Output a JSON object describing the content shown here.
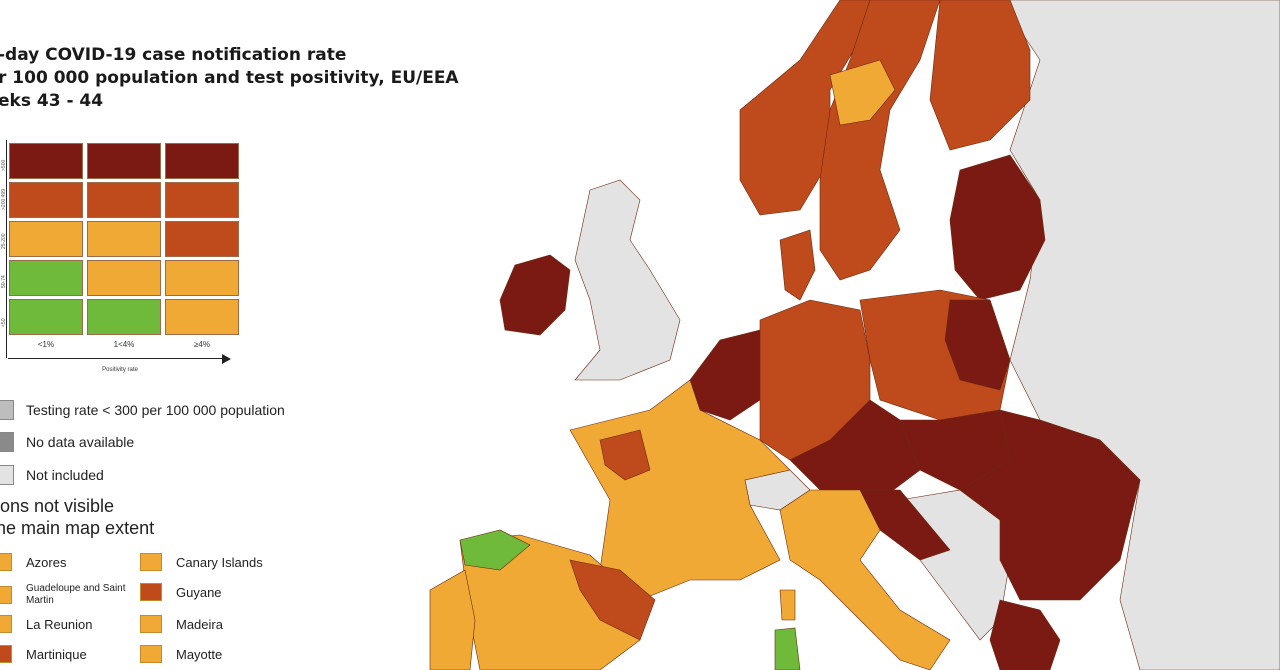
{
  "title": {
    "line1": "-day COVID-19 case notification rate",
    "line2": "r 100 000 population and test positivity, EU/EEA",
    "line3": "eks 43 - 44"
  },
  "colors": {
    "dark_red": "#7b1a12",
    "red": "#bf4a1c",
    "orange": "#f0a934",
    "green": "#6fba3a",
    "grey_light": "#e3e3e3",
    "grey_mid": "#bdbdbd",
    "grey_dark": "#8a8a8a",
    "sea": "#ffffff"
  },
  "matrix": {
    "rate_labels": [
      ">500",
      ">200 499",
      "25-200",
      "50-74",
      "<50"
    ],
    "positivity_labels": [
      "<1%",
      "1<4%",
      "≥4%"
    ],
    "axis_title": "Positivity rate",
    "cells": [
      [
        "dark_red",
        "dark_red",
        "dark_red"
      ],
      [
        "red",
        "red",
        "red"
      ],
      [
        "orange",
        "orange",
        "red"
      ],
      [
        "green",
        "orange",
        "orange"
      ],
      [
        "green",
        "green",
        "orange"
      ]
    ]
  },
  "legend": [
    {
      "label": "Testing rate < 300 per 100 000 population",
      "color": "grey_mid"
    },
    {
      "label": "No data available",
      "color": "grey_dark"
    },
    {
      "label": "Not included",
      "color": "grey_light"
    }
  ],
  "regions": {
    "title_line1": "ions not visible",
    "title_line2": "he main map extent",
    "items": [
      {
        "label": "Azores",
        "color": "orange"
      },
      {
        "label": "Canary Islands",
        "color": "orange"
      },
      {
        "label": "Guadeloupe and Saint Martin",
        "color": "orange"
      },
      {
        "label": "Guyane",
        "color": "red"
      },
      {
        "label": "La Reunion",
        "color": "orange"
      },
      {
        "label": "Madeira",
        "color": "orange"
      },
      {
        "label": "Martinique",
        "color": "red"
      },
      {
        "label": "Mayotte",
        "color": "orange"
      }
    ]
  },
  "map_regions": {
    "norway": "red",
    "sweden": "red",
    "sweden_central": "orange",
    "finland": "red",
    "estonia_latvia_lithuania": "dark_red",
    "ireland": "dark_red",
    "uk": "grey_light",
    "denmark": "red",
    "benelux": "dark_red",
    "germany": "red",
    "poland": "red",
    "poland_east": "dark_red",
    "czechia_austria": "dark_red",
    "hungary_slovakia": "dark_red",
    "romania_bulgaria": "dark_red",
    "greece": "dark_red",
    "france": "orange",
    "france_north": "red",
    "spain": "orange",
    "spain_northeast": "red",
    "spain_north": "green",
    "portugal": "orange",
    "italy": "orange",
    "switzerland": "grey_light",
    "croatia_slovenia": "dark_red",
    "balkans": "grey_light",
    "russia_belarus_ukraine": "grey_light",
    "sardinia": "green",
    "corsica": "orange"
  }
}
